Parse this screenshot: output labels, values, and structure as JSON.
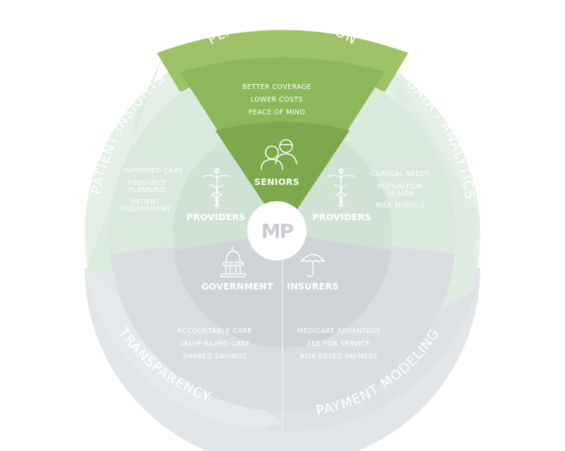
{
  "diagram": {
    "outer_ring": {
      "top": "PLAN OPTIMIZATION",
      "left": "PATIENT INSIGHTS",
      "right": "DATA / ANALYTICS",
      "bottom_left": "TRANSPARENCY",
      "bottom_right": "PAYMENT MODELING"
    },
    "top_wedge": {
      "lines": [
        "BETTER COVERAGE",
        "LOWER COSTS",
        "PEACE OF MIND"
      ]
    },
    "nodes": {
      "seniors": "SENIORS",
      "providers_left": "PROVIDERS",
      "providers_right": "PROVIDERS",
      "government": "GOVERNMENT",
      "insurers": "INSURERS"
    },
    "left_wedge": {
      "lines": [
        "IMPROVED CARE",
        "RESOURCE",
        "PLANNING",
        "PATIENT",
        "ENGAGEMENT"
      ]
    },
    "right_wedge": {
      "lines": [
        "CLINICAL NEEDS",
        "POPUALTION",
        "HEALTH",
        "RISK MODELS"
      ]
    },
    "bottom_left_wedge": {
      "lines": [
        "ACCOUNTABLE CARE",
        "VALUE-BASED CARE",
        "SHARED SAVINGS"
      ]
    },
    "bottom_right_wedge": {
      "lines": [
        "MEDICARE ADVANTAGE",
        "FEE FOR SERVICE",
        "RISK-BASED PAYMENT"
      ]
    },
    "logo": {
      "text": "MP"
    },
    "icons": {
      "seniors": "seniors-couple-icon",
      "providers": "caduceus-icon",
      "government": "capitol-building-icon",
      "insurers": "umbrella-icon"
    },
    "colors": {
      "green_dark": "#7da84c",
      "green_mid": "#8db85a",
      "green_light": "#9dc267",
      "mint_outer": "#e4efe5",
      "mint_mid": "#d9e9dc",
      "mint_inner": "#cfe2d3",
      "grey_outer": "#e3e6e8",
      "grey_mid": "#d9dde0",
      "grey_inner": "#ced3d7",
      "label_white": "#ffffff"
    }
  }
}
